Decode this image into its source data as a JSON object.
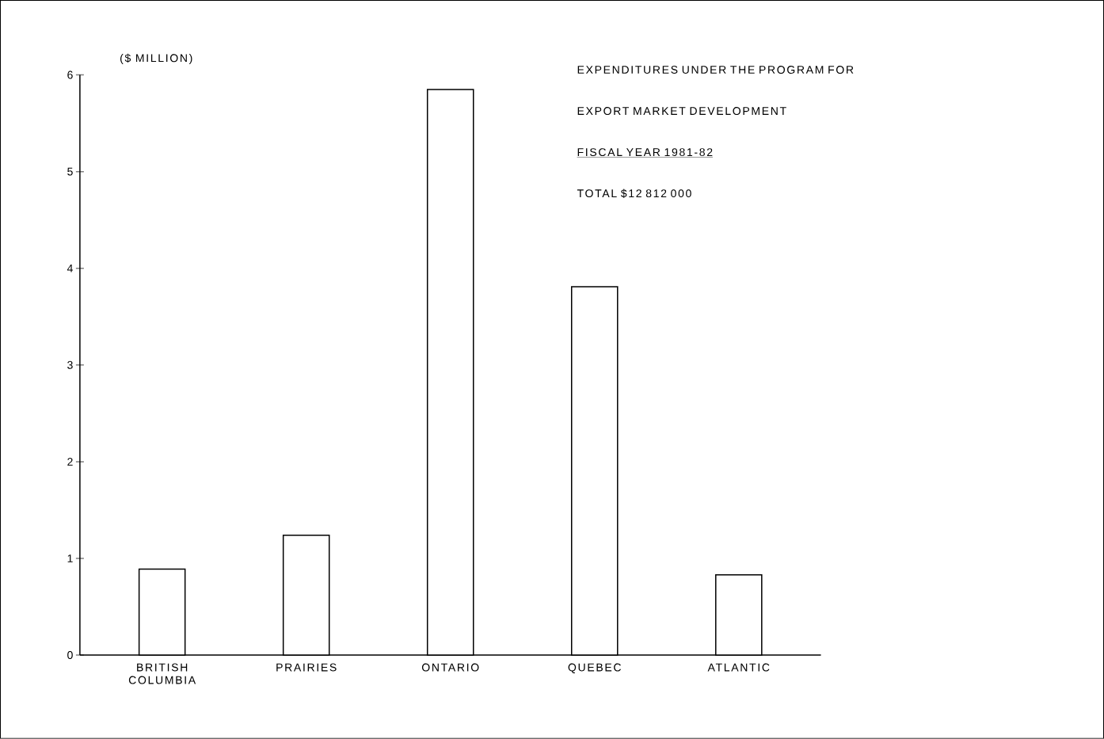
{
  "chart_data": {
    "type": "bar",
    "title": "EXPENDITURES UNDER THE PROGRAM FOR EXPORT MARKET DEVELOPMENT",
    "subtitle": "FISCAL YEAR 1981-82",
    "annotations": [
      "TOTAL $12 812 000"
    ],
    "ylabel": "($ MILLION)",
    "categories": [
      "BRITISH COLUMBIA",
      "PRAIRIES",
      "ONTARIO",
      "QUEBEC",
      "ATLANTIC"
    ],
    "values": [
      0.89,
      1.24,
      5.85,
      3.81,
      0.83
    ],
    "color": "#000000",
    "ylim": [
      0,
      6
    ],
    "yticks": [
      0,
      1,
      2,
      3,
      4,
      5,
      6
    ]
  }
}
